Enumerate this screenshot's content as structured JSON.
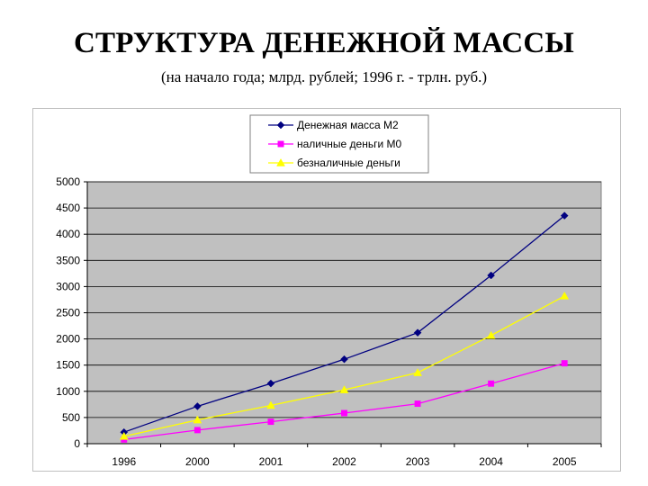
{
  "title": "СТРУКТУРА ДЕНЕЖНОЙ МАССЫ",
  "subtitle": "(на начало года; млрд. рублей; 1996 г. - трлн. руб.)",
  "chart_data": {
    "type": "line",
    "categories": [
      "1996",
      "2000",
      "2001",
      "2002",
      "2003",
      "2004",
      "2005"
    ],
    "ylim": [
      0,
      5000
    ],
    "yticks": [
      0,
      500,
      1000,
      1500,
      2000,
      2500,
      3000,
      3500,
      4000,
      4500,
      5000
    ],
    "grid": true,
    "plot_background": "#c0c0c0",
    "legend_position": "top-center",
    "series": [
      {
        "name": "Денежная масса М2",
        "color": "#000080",
        "marker": "diamond",
        "values": [
          220,
          714,
          1150,
          1612,
          2119,
          3213,
          4354
        ]
      },
      {
        "name": "наличные деньги М0",
        "color": "#ff00ff",
        "marker": "square",
        "values": [
          80,
          260,
          419,
          584,
          763,
          1147,
          1535
        ]
      },
      {
        "name": "безналичные деньги",
        "color": "#ffff00",
        "marker": "triangle",
        "values": [
          140,
          454,
          731,
          1028,
          1356,
          2066,
          2819
        ]
      }
    ]
  }
}
